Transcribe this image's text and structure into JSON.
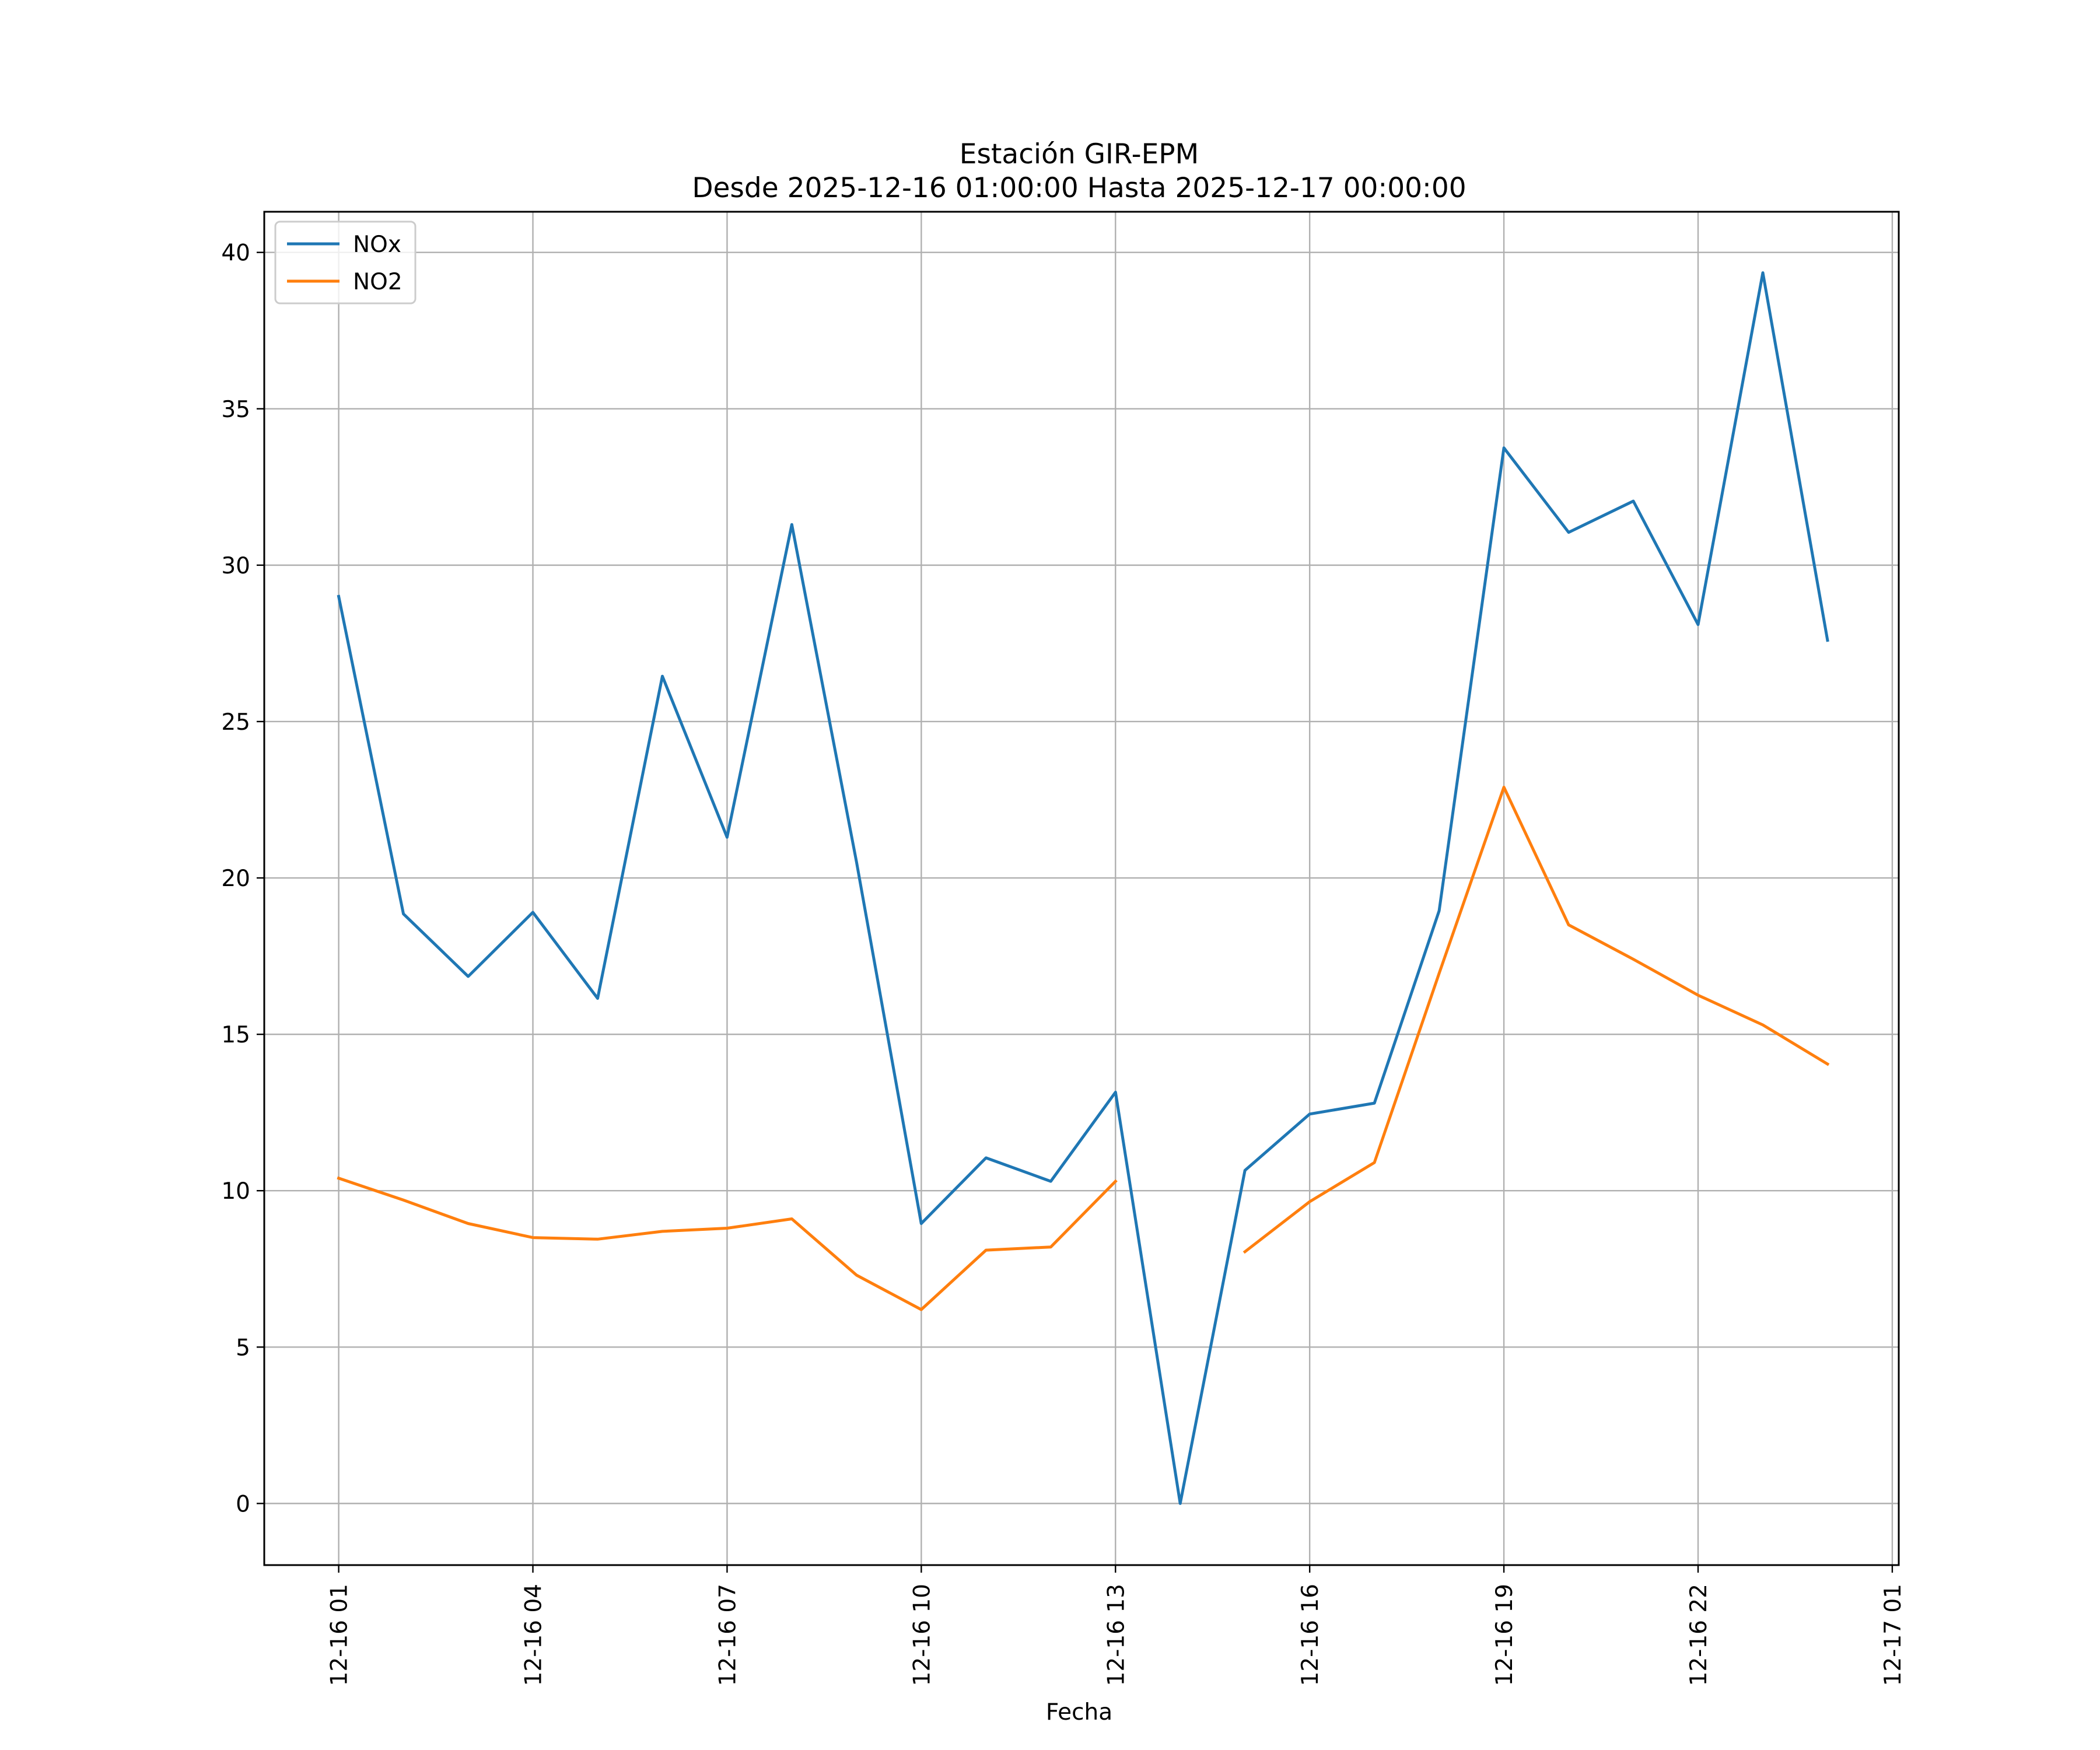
{
  "chart_data": {
    "type": "line",
    "title": "Estación GIR-EPM",
    "subtitle": "Desde 2025-12-16 01:00:00 Hasta 2025-12-17 00:00:00",
    "xlabel": "Fecha",
    "ylabel": "",
    "x_hours": [
      1,
      2,
      3,
      4,
      5,
      6,
      7,
      8,
      9,
      10,
      11,
      12,
      13,
      14,
      15,
      16,
      17,
      18,
      19,
      20,
      21,
      22,
      23,
      24
    ],
    "x_ticks": [
      {
        "hour": 1,
        "label": "12-16 01"
      },
      {
        "hour": 4,
        "label": "12-16 04"
      },
      {
        "hour": 7,
        "label": "12-16 07"
      },
      {
        "hour": 10,
        "label": "12-16 10"
      },
      {
        "hour": 13,
        "label": "12-16 13"
      },
      {
        "hour": 16,
        "label": "12-16 16"
      },
      {
        "hour": 19,
        "label": "12-16 19"
      },
      {
        "hour": 22,
        "label": "12-16 22"
      },
      {
        "hour": 25,
        "label": "12-17 01"
      }
    ],
    "xlim": [
      -0.15,
      25.1
    ],
    "ylim": [
      -1.97,
      41.3
    ],
    "y_ticks": [
      0,
      5,
      10,
      15,
      20,
      25,
      30,
      35,
      40
    ],
    "grid": true,
    "legend_position": "top-left",
    "series": [
      {
        "name": "NOx",
        "color": "#1f77b4",
        "values": [
          29.0,
          18.85,
          16.85,
          18.9,
          16.15,
          26.45,
          21.3,
          31.3,
          20.5,
          8.95,
          11.05,
          10.3,
          13.15,
          0.0,
          10.65,
          12.45,
          12.8,
          18.95,
          33.75,
          31.05,
          32.05,
          28.1,
          39.35,
          27.6
        ]
      },
      {
        "name": "NO2",
        "color": "#ff7f0e",
        "values": [
          10.4,
          9.7,
          8.95,
          8.5,
          8.45,
          8.7,
          8.8,
          9.1,
          7.3,
          6.2,
          8.1,
          8.2,
          10.3,
          null,
          8.05,
          9.65,
          10.9,
          16.95,
          22.9,
          18.5,
          17.4,
          16.25,
          15.3,
          14.05
        ]
      }
    ]
  }
}
